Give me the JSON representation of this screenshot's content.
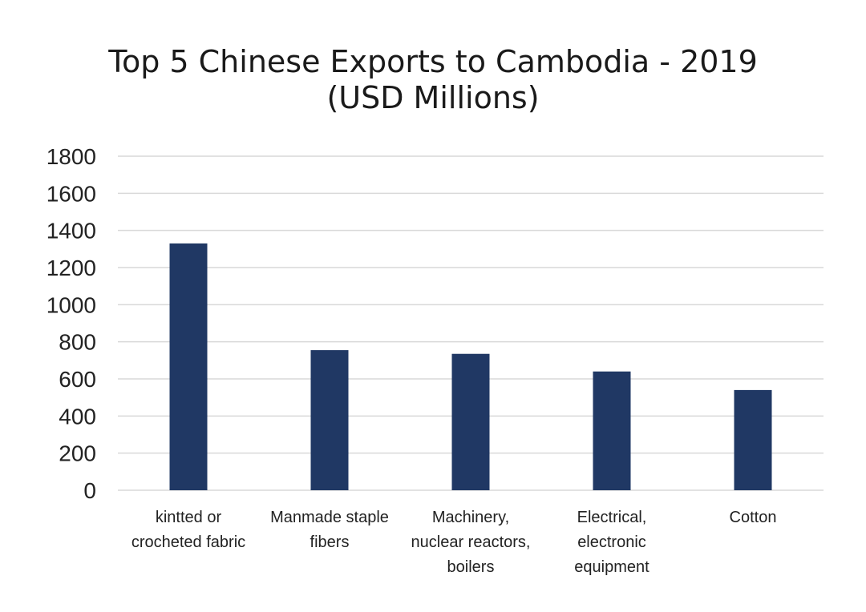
{
  "chart_data": {
    "type": "bar",
    "title": [
      "Top 5 Chinese Exports to Cambodia - 2019",
      "(USD Millions)"
    ],
    "categories": [
      [
        "kintted or",
        "crocheted fabric"
      ],
      [
        "Manmade staple",
        "fibers"
      ],
      [
        "Machinery,",
        "nuclear reactors,",
        "boilers"
      ],
      [
        "Electrical,",
        "electronic",
        "equipment"
      ],
      [
        "Cotton"
      ]
    ],
    "values": [
      1330,
      755,
      735,
      640,
      540
    ],
    "ylim": [
      0,
      1800
    ],
    "yticks": [
      0,
      200,
      400,
      600,
      800,
      1000,
      1200,
      1400,
      1600,
      1800
    ],
    "grid": true,
    "legend": "none",
    "bar_color": "#203864"
  }
}
